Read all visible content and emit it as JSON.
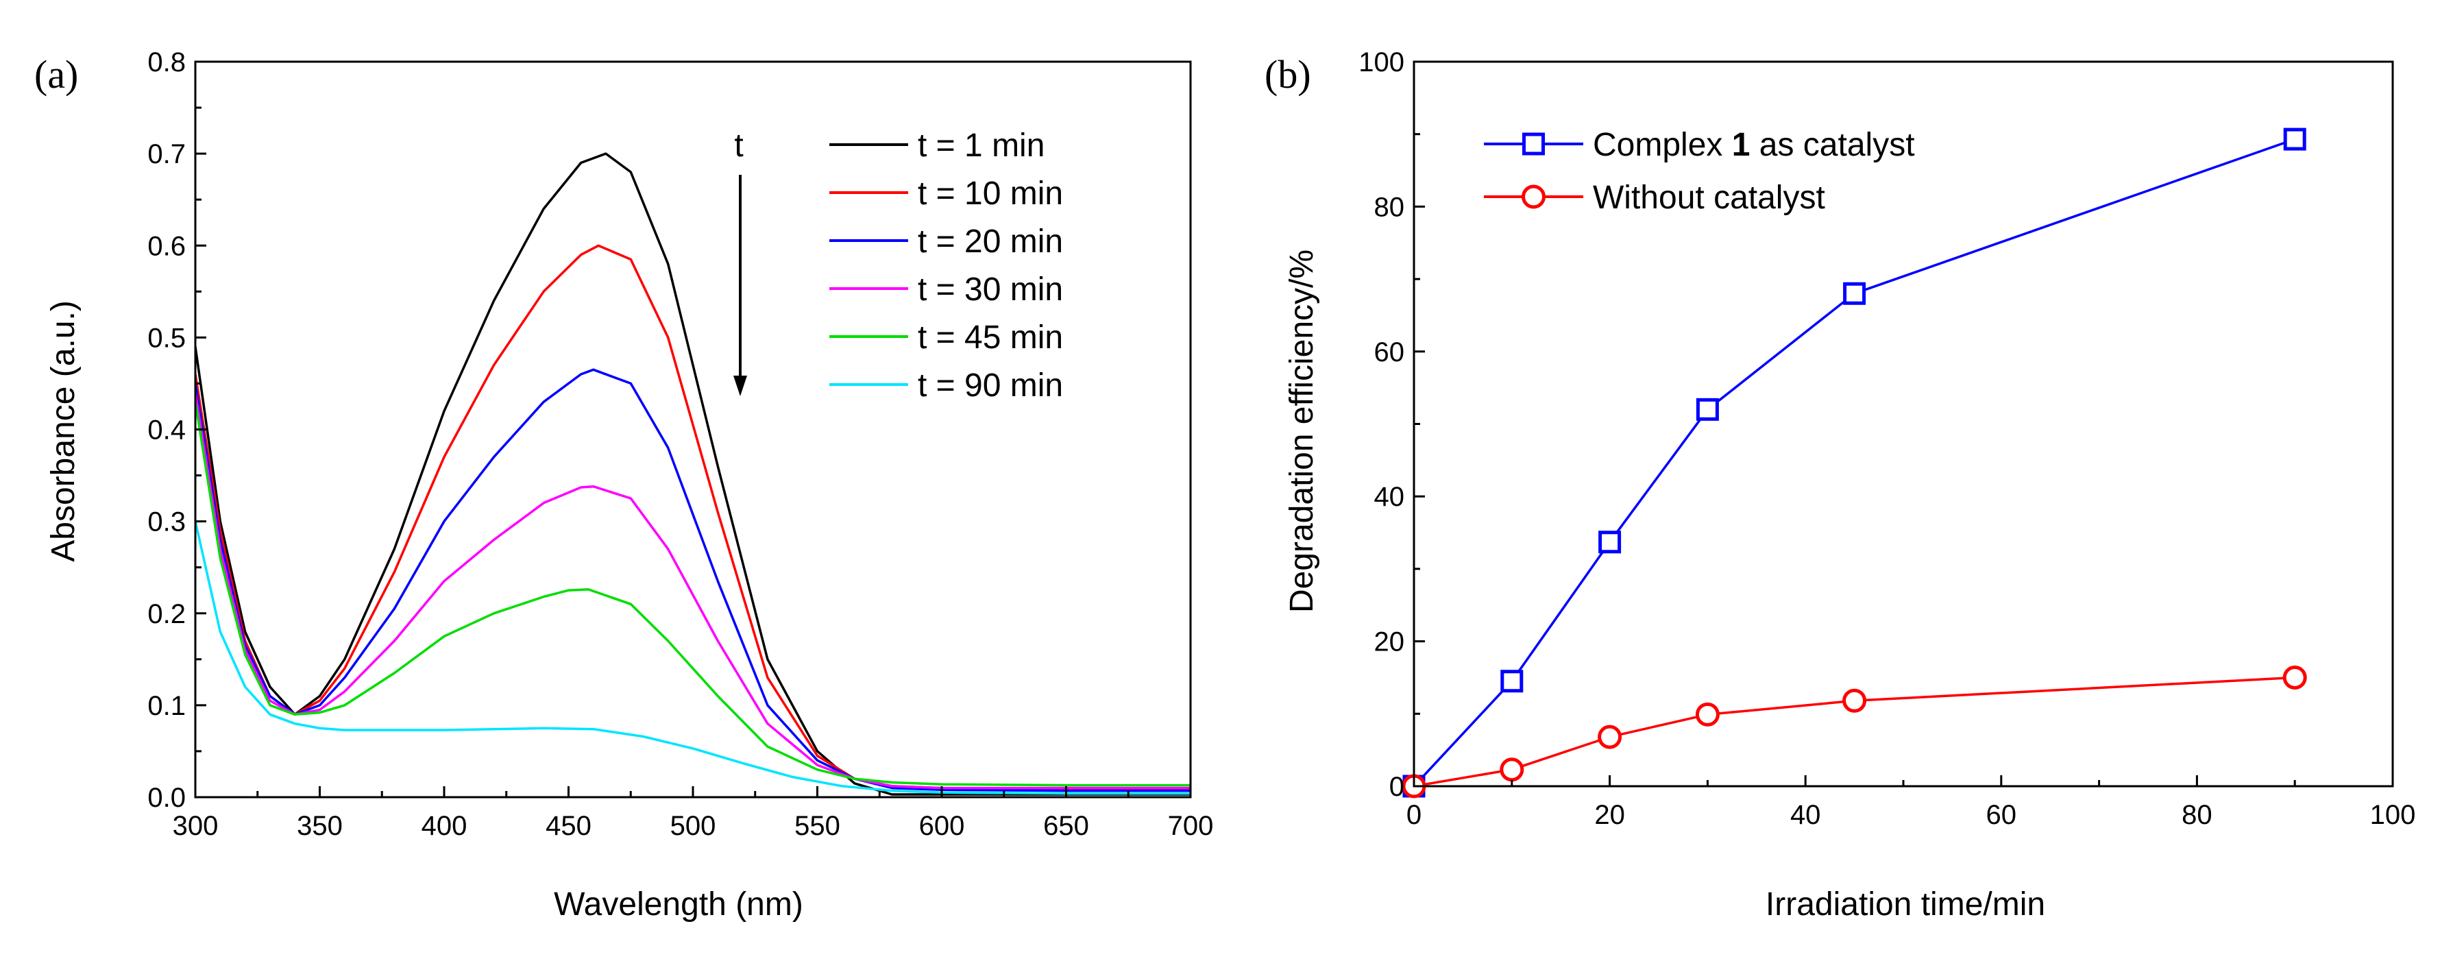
{
  "chart_data": [
    {
      "type": "line",
      "panel_label": "(a)",
      "title": "",
      "xlabel": "Wavelength (nm)",
      "ylabel": "Absorbance (a.u.)",
      "xlim": [
        300,
        700
      ],
      "ylim": [
        0.0,
        0.8
      ],
      "xticks": [
        300,
        350,
        400,
        450,
        500,
        550,
        600,
        650,
        700
      ],
      "xtick_labels": [
        "300",
        "350",
        "400",
        "450",
        "500",
        "550",
        "600",
        "650",
        "700"
      ],
      "yticks": [
        0.0,
        0.1,
        0.2,
        0.3,
        0.4,
        0.5,
        0.6,
        0.7,
        0.8
      ],
      "ytick_labels": [
        "0.0",
        "0.1",
        "0.2",
        "0.3",
        "0.4",
        "0.5",
        "0.6",
        "0.7",
        "0.8"
      ],
      "grid": false,
      "legend_position": "top-right",
      "annotation": {
        "text": "t",
        "meaning": "arrow pointing down: absorbance decreases with time"
      },
      "series": [
        {
          "name": "t = 1 min",
          "color": "#000000",
          "x": [
            300,
            310,
            320,
            330,
            340,
            350,
            360,
            380,
            400,
            420,
            440,
            455,
            465,
            475,
            490,
            510,
            530,
            550,
            565,
            580,
            600,
            650,
            700
          ],
          "y": [
            0.49,
            0.3,
            0.18,
            0.12,
            0.09,
            0.11,
            0.15,
            0.27,
            0.42,
            0.54,
            0.64,
            0.69,
            0.7,
            0.68,
            0.58,
            0.36,
            0.15,
            0.05,
            0.015,
            0.003,
            0.003,
            0.003,
            0.003
          ]
        },
        {
          "name": "t = 10 min",
          "color": "#ff0000",
          "x": [
            300,
            310,
            320,
            330,
            340,
            350,
            360,
            380,
            400,
            420,
            440,
            455,
            462,
            475,
            490,
            510,
            530,
            550,
            565,
            580,
            600,
            650,
            700
          ],
          "y": [
            0.46,
            0.29,
            0.17,
            0.11,
            0.09,
            0.105,
            0.14,
            0.245,
            0.37,
            0.47,
            0.55,
            0.59,
            0.6,
            0.585,
            0.5,
            0.31,
            0.13,
            0.045,
            0.02,
            0.012,
            0.01,
            0.008,
            0.008
          ]
        },
        {
          "name": "t = 20 min",
          "color": "#0000ff",
          "x": [
            300,
            310,
            320,
            330,
            340,
            350,
            360,
            380,
            400,
            420,
            440,
            455,
            460,
            475,
            490,
            510,
            530,
            550,
            565,
            580,
            600,
            650,
            700
          ],
          "y": [
            0.45,
            0.28,
            0.165,
            0.11,
            0.09,
            0.1,
            0.13,
            0.205,
            0.3,
            0.37,
            0.43,
            0.46,
            0.465,
            0.45,
            0.38,
            0.235,
            0.1,
            0.04,
            0.02,
            0.01,
            0.008,
            0.007,
            0.007
          ]
        },
        {
          "name": "t = 30 min",
          "color": "#ff00ff",
          "x": [
            300,
            310,
            320,
            330,
            340,
            350,
            360,
            380,
            400,
            420,
            440,
            455,
            460,
            475,
            490,
            510,
            530,
            550,
            565,
            580,
            600,
            650,
            700
          ],
          "y": [
            0.44,
            0.27,
            0.16,
            0.105,
            0.09,
            0.095,
            0.115,
            0.17,
            0.235,
            0.28,
            0.32,
            0.337,
            0.338,
            0.325,
            0.27,
            0.17,
            0.08,
            0.035,
            0.02,
            0.012,
            0.01,
            0.01,
            0.01
          ]
        },
        {
          "name": "t = 45 min",
          "color": "#00dd00",
          "x": [
            300,
            310,
            320,
            330,
            340,
            350,
            360,
            380,
            400,
            420,
            440,
            450,
            458,
            475,
            490,
            510,
            530,
            550,
            565,
            580,
            600,
            650,
            700
          ],
          "y": [
            0.43,
            0.26,
            0.155,
            0.1,
            0.09,
            0.092,
            0.1,
            0.135,
            0.175,
            0.2,
            0.218,
            0.225,
            0.226,
            0.21,
            0.17,
            0.11,
            0.055,
            0.03,
            0.02,
            0.016,
            0.014,
            0.013,
            0.013
          ]
        },
        {
          "name": "t = 90 min",
          "color": "#00e5ff",
          "x": [
            300,
            310,
            320,
            330,
            340,
            350,
            360,
            380,
            400,
            420,
            440,
            460,
            480,
            500,
            520,
            540,
            560,
            580,
            600,
            650,
            700
          ],
          "y": [
            0.3,
            0.18,
            0.12,
            0.09,
            0.08,
            0.075,
            0.073,
            0.073,
            0.073,
            0.074,
            0.075,
            0.074,
            0.066,
            0.053,
            0.037,
            0.022,
            0.012,
            0.007,
            0.005,
            0.004,
            0.004
          ]
        }
      ]
    },
    {
      "type": "line",
      "panel_label": "(b)",
      "title": "",
      "xlabel": "Irradiation time/min",
      "ylabel": "Degradation efficiency/%",
      "xlim": [
        0,
        100
      ],
      "ylim": [
        0,
        100
      ],
      "xticks": [
        0,
        20,
        40,
        60,
        80,
        100
      ],
      "xtick_labels": [
        "0",
        "20",
        "40",
        "60",
        "80",
        "100"
      ],
      "yticks": [
        0,
        20,
        40,
        60,
        80,
        100
      ],
      "ytick_labels": [
        "0",
        "20",
        "40",
        "60",
        "80",
        "100"
      ],
      "grid": false,
      "legend_position": "top-left",
      "series": [
        {
          "name": "Complex 1 as catalyst",
          "label_prefix": "Complex ",
          "label_bold": "1",
          "label_suffix": " as catalyst",
          "color": "#0000ff",
          "marker": "square",
          "x": [
            0,
            10,
            20,
            30,
            45,
            90
          ],
          "y": [
            0,
            14.5,
            33.7,
            52,
            68,
            89.3
          ]
        },
        {
          "name": "Without catalyst",
          "label_prefix": "Without catalyst",
          "label_bold": "",
          "label_suffix": "",
          "color": "#ff0000",
          "marker": "circle",
          "x": [
            0,
            10,
            20,
            30,
            45,
            90
          ],
          "y": [
            0,
            2.3,
            6.8,
            9.9,
            11.8,
            15
          ]
        }
      ]
    }
  ]
}
